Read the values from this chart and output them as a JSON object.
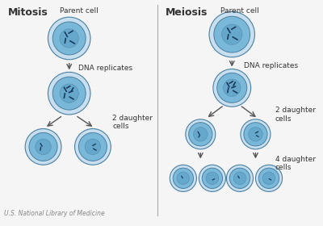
{
  "bg_color": "#f5f5f5",
  "cell_outer_color": "#c8dff0",
  "cell_inner_color": "#7ab8d9",
  "cell_nucleus_color": "#5a9ec4",
  "cell_border_color": "#4a7fa0",
  "divider_color": "#aaaaaa",
  "arrow_color": "#555555",
  "text_color": "#333333",
  "mitosis_label": "Mitosis",
  "meiosis_label": "Meiosis",
  "parent_cell_label": "Parent cell",
  "dna_replicates_label": "DNA replicates",
  "two_daughter_label": "2 daughter\ncells",
  "four_daughter_label": "4 daughter\ncells",
  "footer_label": "U.S. National Library of Medicine"
}
